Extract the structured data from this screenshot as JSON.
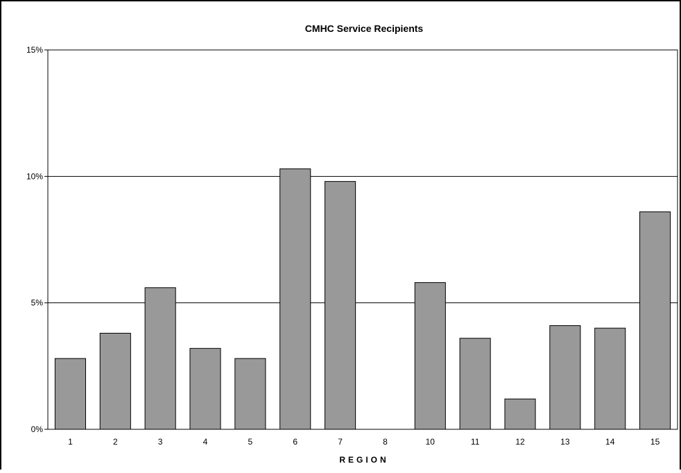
{
  "chart_data": {
    "type": "bar",
    "title": "CMHC Service Recipients",
    "xlabel": "REGION",
    "ylabel": "",
    "categories": [
      "1",
      "2",
      "3",
      "4",
      "5",
      "6",
      "7",
      "8",
      "10",
      "11",
      "12",
      "13",
      "14",
      "15"
    ],
    "values": [
      2.8,
      3.8,
      5.6,
      3.2,
      2.8,
      10.3,
      9.8,
      0,
      5.8,
      3.6,
      1.2,
      4.1,
      4.0,
      8.6
    ],
    "value_unit": "%",
    "ylim": [
      0,
      15
    ],
    "yticks": [
      0,
      5,
      10,
      15
    ],
    "ytick_labels": [
      "0%",
      "5%",
      "10%",
      "15%"
    ],
    "grid": "horizontal major lines",
    "legend": "none",
    "bar_color": "#999999",
    "bar_border_color": "#000000",
    "background": "#ffffff"
  }
}
